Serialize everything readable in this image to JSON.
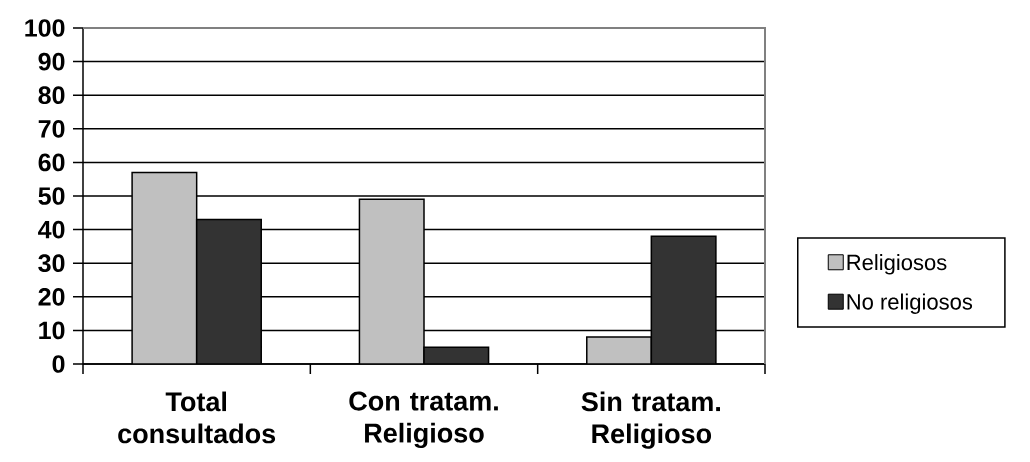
{
  "chart_data": {
    "type": "bar",
    "categories": [
      "Total consultados",
      "Con tratam. Religioso",
      "Sin tratam. Religioso"
    ],
    "series": [
      {
        "name": "Religiosos",
        "color": "#c0c0c0",
        "values": [
          57,
          49,
          8
        ]
      },
      {
        "name": "No religiosos",
        "color": "#333333",
        "values": [
          43,
          5,
          38
        ]
      }
    ],
    "ylim": [
      0,
      100
    ],
    "yticks": [
      0,
      10,
      20,
      30,
      40,
      50,
      60,
      70,
      80,
      90,
      100
    ],
    "grid": "y",
    "legend": "right"
  }
}
